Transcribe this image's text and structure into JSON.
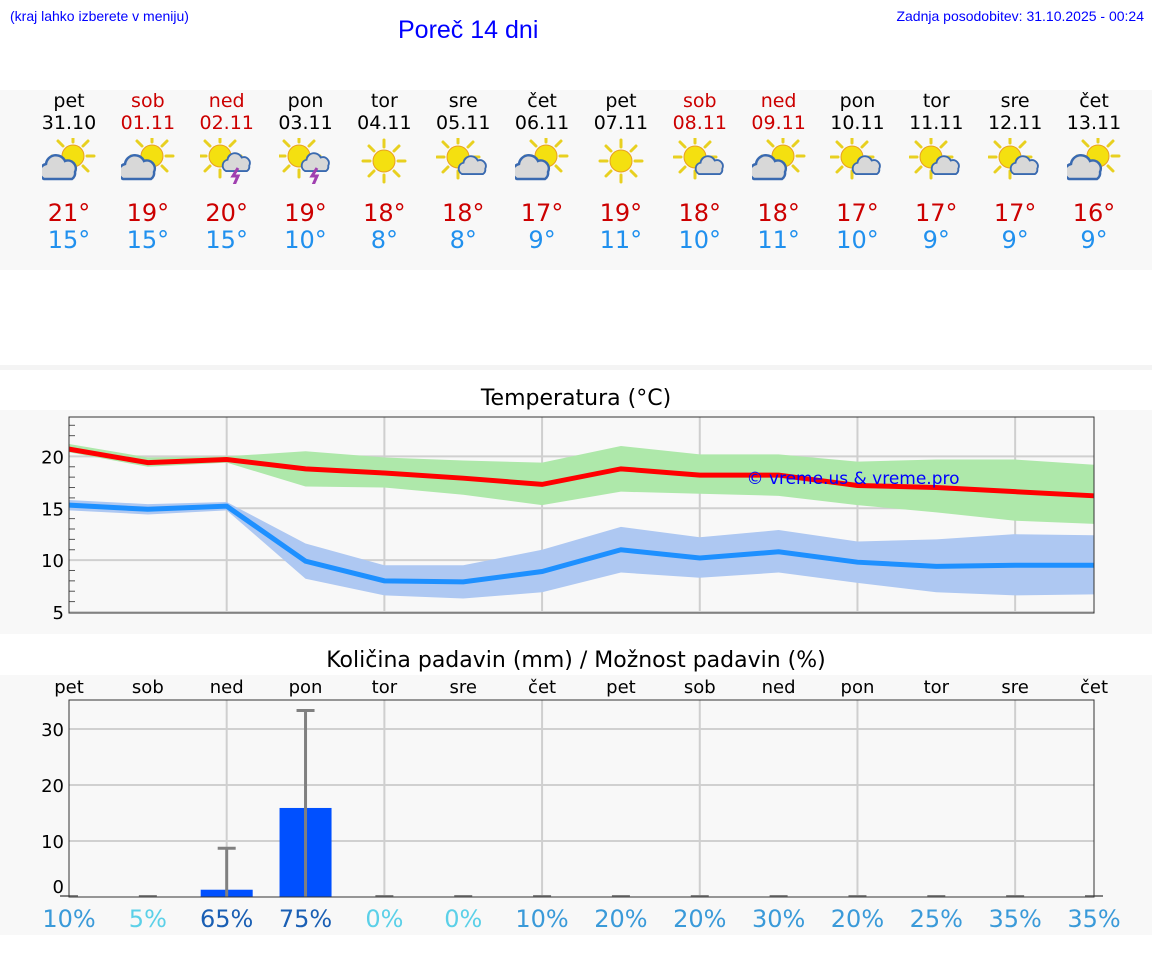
{
  "header": {
    "hint": "(kraj lahko izberete v meniju)",
    "title": "Poreč 14 dni",
    "updated": "Zadnja posodobitev: 31.10.2025 - 00:24"
  },
  "days": [
    {
      "name": "pet",
      "date": "31.10",
      "weekend": false,
      "icon": "sun-cloud-icon",
      "max": "21°",
      "min": "15°"
    },
    {
      "name": "sob",
      "date": "01.11",
      "weekend": true,
      "icon": "sun-cloud-icon",
      "max": "19°",
      "min": "15°"
    },
    {
      "name": "ned",
      "date": "02.11",
      "weekend": true,
      "icon": "sun-thunder-icon",
      "max": "20°",
      "min": "15°"
    },
    {
      "name": "pon",
      "date": "03.11",
      "weekend": false,
      "icon": "sun-thunder-icon",
      "max": "19°",
      "min": "10°"
    },
    {
      "name": "tor",
      "date": "04.11",
      "weekend": false,
      "icon": "sun-icon",
      "max": "18°",
      "min": "8°"
    },
    {
      "name": "sre",
      "date": "05.11",
      "weekend": false,
      "icon": "sun-small-cloud-icon",
      "max": "18°",
      "min": "8°"
    },
    {
      "name": "čet",
      "date": "06.11",
      "weekend": false,
      "icon": "sun-cloud-icon",
      "max": "17°",
      "min": "9°"
    },
    {
      "name": "pet",
      "date": "07.11",
      "weekend": false,
      "icon": "sun-icon",
      "max": "19°",
      "min": "11°"
    },
    {
      "name": "sob",
      "date": "08.11",
      "weekend": true,
      "icon": "sun-small-cloud-icon",
      "max": "18°",
      "min": "10°"
    },
    {
      "name": "ned",
      "date": "09.11",
      "weekend": true,
      "icon": "sun-cloud-icon",
      "max": "18°",
      "min": "11°"
    },
    {
      "name": "pon",
      "date": "10.11",
      "weekend": false,
      "icon": "sun-small-cloud-icon",
      "max": "17°",
      "min": "10°"
    },
    {
      "name": "tor",
      "date": "11.11",
      "weekend": false,
      "icon": "sun-small-cloud-icon",
      "max": "17°",
      "min": "9°"
    },
    {
      "name": "sre",
      "date": "12.11",
      "weekend": false,
      "icon": "sun-small-cloud-icon",
      "max": "17°",
      "min": "9°"
    },
    {
      "name": "čet",
      "date": "13.11",
      "weekend": false,
      "icon": "sun-cloud-icon",
      "max": "16°",
      "min": "9°"
    }
  ],
  "chart_data": [
    {
      "type": "line",
      "title": "Temperatura (°C)",
      "watermark": "© vreme.us & vreme.pro",
      "ylim": [
        4.9,
        23.8
      ],
      "yticks": [
        5,
        10,
        15,
        20
      ],
      "colors": {
        "max": "#ff0000",
        "min": "#1e90ff",
        "max_band": "#aee8aa",
        "min_band": "#aec8f2"
      },
      "series": [
        {
          "name": "max",
          "values": [
            20.7,
            19.4,
            19.7,
            18.8,
            18.4,
            17.9,
            17.3,
            18.8,
            18.2,
            18.2,
            17.2,
            17.0,
            16.6,
            16.2
          ],
          "upper": [
            21.2,
            19.9,
            20.0,
            20.5,
            19.9,
            19.6,
            19.4,
            21.0,
            20.2,
            20.2,
            19.5,
            19.7,
            19.7,
            19.2
          ],
          "lower": [
            20.4,
            19.0,
            19.4,
            17.1,
            17.0,
            16.3,
            15.3,
            16.6,
            16.4,
            16.2,
            15.3,
            14.6,
            13.8,
            13.5
          ]
        },
        {
          "name": "min",
          "values": [
            15.3,
            14.9,
            15.2,
            9.9,
            8.0,
            7.9,
            8.9,
            11.0,
            10.2,
            10.8,
            9.8,
            9.4,
            9.5,
            9.5
          ],
          "upper": [
            15.8,
            15.4,
            15.6,
            11.6,
            9.5,
            9.5,
            11.0,
            13.2,
            12.2,
            12.9,
            11.8,
            12.0,
            12.5,
            12.4
          ],
          "lower": [
            14.8,
            14.4,
            14.8,
            8.2,
            6.6,
            6.3,
            6.9,
            8.8,
            8.3,
            8.8,
            7.8,
            6.9,
            6.6,
            6.7
          ]
        }
      ]
    },
    {
      "type": "bar",
      "title": "Količina padavin (mm) / Možnost padavin (%)",
      "ylim": [
        0,
        35
      ],
      "yticks": [
        0,
        10,
        20,
        30
      ],
      "categories": [
        "pet",
        "sob",
        "ned",
        "pon",
        "tor",
        "sre",
        "čet",
        "pet",
        "sob",
        "ned",
        "pon",
        "tor",
        "sre",
        "čet"
      ],
      "values": [
        0,
        0,
        1.3,
        15.9,
        0,
        0,
        0,
        0,
        0,
        0,
        0,
        0,
        0,
        0
      ],
      "error_max": [
        0,
        0,
        8.7,
        33.3,
        0,
        0,
        0,
        0,
        0,
        0,
        0,
        0,
        0,
        0
      ],
      "probability": [
        "10%",
        "5%",
        "65%",
        "75%",
        "0%",
        "0%",
        "10%",
        "20%",
        "20%",
        "30%",
        "20%",
        "25%",
        "35%",
        "35%"
      ],
      "probability_colors": [
        "#3a9ad9",
        "#5bd0e8",
        "#1a5fb4",
        "#1a5fb4",
        "#5bd0e8",
        "#5bd0e8",
        "#3a9ad9",
        "#3a9ad9",
        "#3a9ad9",
        "#3a9ad9",
        "#3a9ad9",
        "#3a9ad9",
        "#3a9ad9",
        "#3a9ad9"
      ],
      "bar_color": "#0050ff"
    }
  ]
}
